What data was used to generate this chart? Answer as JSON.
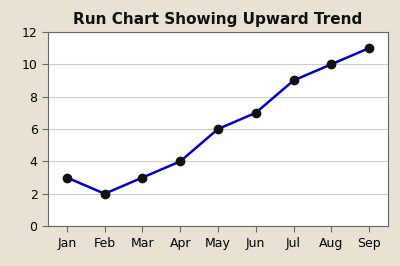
{
  "title": "Run Chart Showing Upward Trend",
  "months": [
    "Jan",
    "Feb",
    "Mar",
    "Apr",
    "May",
    "Jun",
    "Jul",
    "Aug",
    "Sep"
  ],
  "values": [
    3,
    2,
    3,
    4,
    6,
    7,
    9,
    10,
    11
  ],
  "line_color": "#0000CC",
  "marker_color": "#111111",
  "marker_size": 6,
  "line_width": 1.8,
  "ylim": [
    0,
    12
  ],
  "yticks": [
    0,
    2,
    4,
    6,
    8,
    10,
    12
  ],
  "background_color": "#E8E2D5",
  "plot_bg_color": "#FFFFFF",
  "title_fontsize": 11,
  "tick_fontsize": 9,
  "grid_color": "#CCCCCC",
  "spine_color": "#666666"
}
